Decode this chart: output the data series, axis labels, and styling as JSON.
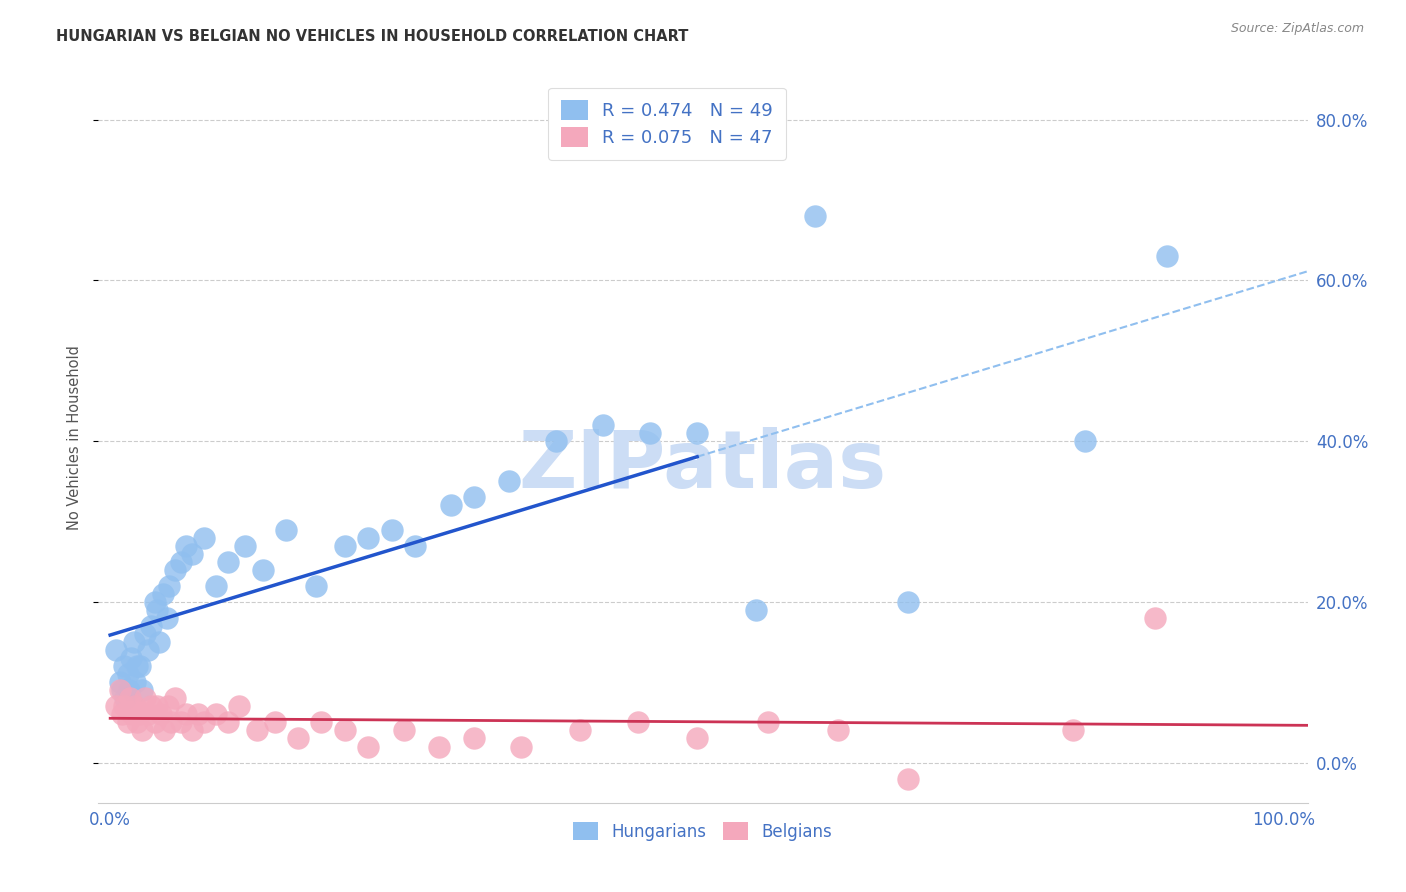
{
  "title": "HUNGARIAN VS BELGIAN NO VEHICLES IN HOUSEHOLD CORRELATION CHART",
  "source": "Source: ZipAtlas.com",
  "ylabel": "No Vehicles in Household",
  "background_color": "#ffffff",
  "grid_color": "#cccccc",
  "hungarian_color": "#90bfef",
  "belgian_color": "#f4a8bc",
  "hungarian_line_color": "#2255cc",
  "belgian_line_color": "#cc3355",
  "trend_dash_color": "#90bfef",
  "legend_text_color": "#4472c4",
  "tick_color": "#4472c4",
  "title_color": "#333333",
  "source_color": "#888888",
  "watermark": "ZIPatlas",
  "watermark_color": "#ccddf5",
  "legend_R_hungarian": "R = 0.474   N = 49",
  "legend_R_belgian": "R = 0.075   N = 47",
  "legend_bottom_hungarian": "Hungarians",
  "legend_bottom_belgian": "Belgians",
  "xlim": [
    -0.01,
    1.02
  ],
  "ylim": [
    -0.05,
    0.86
  ],
  "yticks": [
    0.0,
    0.2,
    0.4,
    0.6,
    0.8
  ],
  "ytick_labels": [
    "0.0%",
    "20.0%",
    "40.0%",
    "60.0%",
    "80.0%"
  ],
  "xtick_positions": [
    0.0,
    1.0
  ],
  "xtick_labels": [
    "0.0%",
    "100.0%"
  ],
  "hung_x": [
    0.005,
    0.008,
    0.01,
    0.012,
    0.013,
    0.015,
    0.016,
    0.018,
    0.02,
    0.021,
    0.023,
    0.025,
    0.027,
    0.03,
    0.032,
    0.035,
    0.038,
    0.04,
    0.042,
    0.045,
    0.048,
    0.05,
    0.055,
    0.06,
    0.065,
    0.07,
    0.08,
    0.09,
    0.1,
    0.115,
    0.13,
    0.15,
    0.175,
    0.2,
    0.22,
    0.24,
    0.26,
    0.29,
    0.31,
    0.34,
    0.38,
    0.42,
    0.46,
    0.5,
    0.55,
    0.6,
    0.68,
    0.83,
    0.9
  ],
  "hung_y": [
    0.14,
    0.1,
    0.09,
    0.12,
    0.08,
    0.11,
    0.09,
    0.13,
    0.15,
    0.1,
    0.12,
    0.12,
    0.09,
    0.16,
    0.14,
    0.17,
    0.2,
    0.19,
    0.15,
    0.21,
    0.18,
    0.22,
    0.24,
    0.25,
    0.27,
    0.26,
    0.28,
    0.22,
    0.25,
    0.27,
    0.24,
    0.29,
    0.22,
    0.27,
    0.28,
    0.29,
    0.27,
    0.32,
    0.33,
    0.35,
    0.4,
    0.42,
    0.41,
    0.41,
    0.19,
    0.68,
    0.2,
    0.4,
    0.63
  ],
  "belg_x": [
    0.005,
    0.008,
    0.01,
    0.012,
    0.015,
    0.017,
    0.019,
    0.021,
    0.023,
    0.025,
    0.027,
    0.03,
    0.032,
    0.035,
    0.038,
    0.04,
    0.043,
    0.046,
    0.049,
    0.052,
    0.055,
    0.06,
    0.065,
    0.07,
    0.075,
    0.08,
    0.09,
    0.1,
    0.11,
    0.125,
    0.14,
    0.16,
    0.18,
    0.2,
    0.22,
    0.25,
    0.28,
    0.31,
    0.35,
    0.4,
    0.45,
    0.5,
    0.56,
    0.62,
    0.68,
    0.82,
    0.89
  ],
  "belg_y": [
    0.07,
    0.09,
    0.06,
    0.07,
    0.05,
    0.08,
    0.06,
    0.07,
    0.05,
    0.06,
    0.04,
    0.08,
    0.06,
    0.07,
    0.05,
    0.07,
    0.06,
    0.04,
    0.07,
    0.05,
    0.08,
    0.05,
    0.06,
    0.04,
    0.06,
    0.05,
    0.06,
    0.05,
    0.07,
    0.04,
    0.05,
    0.03,
    0.05,
    0.04,
    0.02,
    0.04,
    0.02,
    0.03,
    0.02,
    0.04,
    0.05,
    0.03,
    0.05,
    0.04,
    -0.02,
    0.04,
    0.18
  ]
}
